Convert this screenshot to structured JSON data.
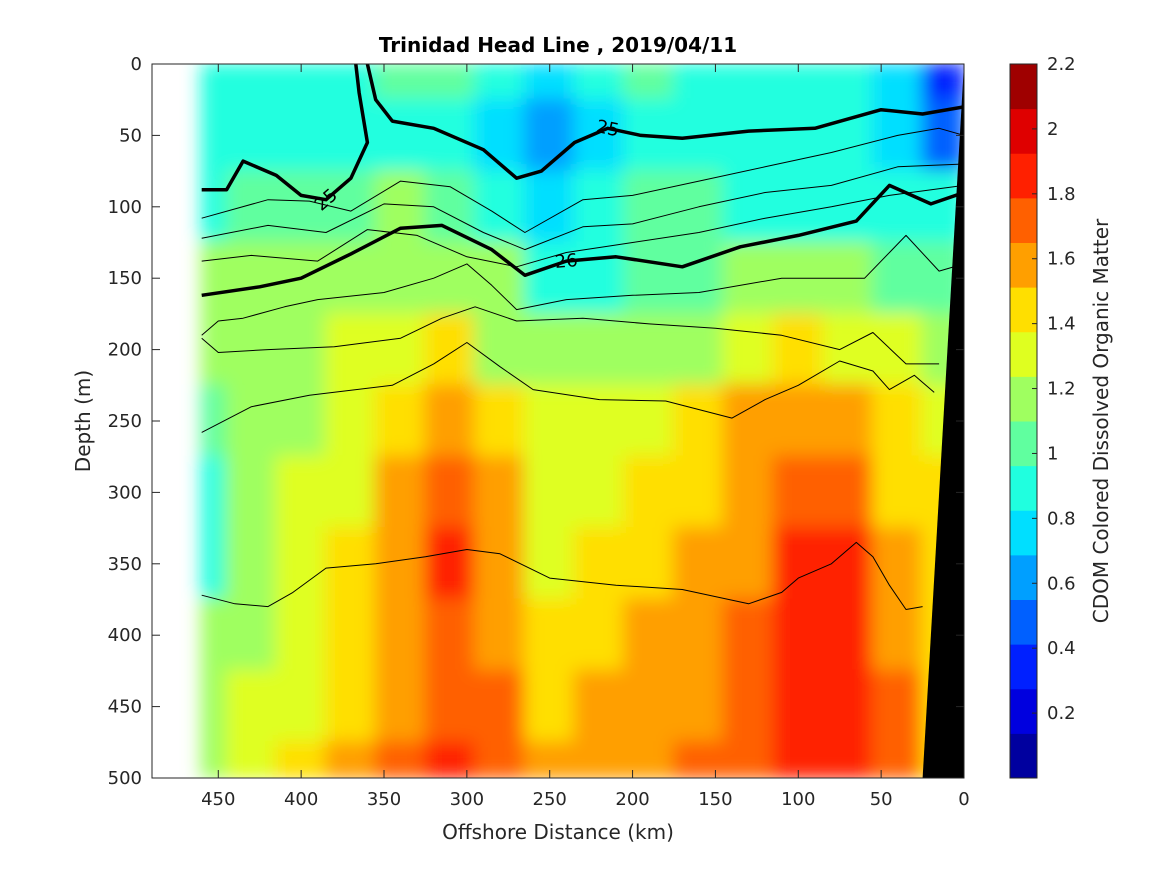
{
  "chart_data": {
    "type": "heatmap",
    "title": "Trinidad Head Line , 2019/04/11",
    "xlabel": "Offshore Distance (km)",
    "ylabel": "Depth (m)",
    "colorbar_label": "CDOM Colored Dissolved Organic Matter",
    "xlim": [
      490,
      0
    ],
    "ylim": [
      0,
      500
    ],
    "clim": [
      0,
      2.2
    ],
    "x_ticks": [
      "450",
      "400",
      "350",
      "300",
      "250",
      "200",
      "150",
      "100",
      "50",
      "0"
    ],
    "x_tick_values": [
      450,
      400,
      350,
      300,
      250,
      200,
      150,
      100,
      50,
      0
    ],
    "y_ticks": [
      "0",
      "50",
      "100",
      "150",
      "200",
      "250",
      "300",
      "350",
      "400",
      "450",
      "500"
    ],
    "y_tick_values": [
      0,
      50,
      100,
      150,
      200,
      250,
      300,
      350,
      400,
      450,
      500
    ],
    "colorbar_ticks": [
      "0.2",
      "0.4",
      "0.6",
      "0.8",
      "1",
      "1.2",
      "1.4",
      "1.6",
      "1.8",
      "2",
      "2.2"
    ],
    "colorbar_tick_values": [
      0.2,
      0.4,
      0.6,
      0.8,
      1.0,
      1.2,
      1.4,
      1.6,
      1.8,
      2.0,
      2.2
    ],
    "data_x_extent": [
      460,
      0
    ],
    "columns_x": [
      460,
      430,
      400,
      370,
      340,
      310,
      280,
      250,
      220,
      190,
      160,
      130,
      100,
      70,
      40,
      10
    ],
    "rows_depth": [
      0,
      50,
      100,
      150,
      200,
      250,
      300,
      350,
      400,
      450,
      500
    ],
    "values": [
      [
        0.85,
        0.9,
        0.95,
        0.85,
        1.0,
        1.0,
        0.95,
        0.8,
        0.9,
        1.0,
        0.95,
        0.85,
        0.85,
        0.9,
        0.8,
        0.3
      ],
      [
        0.85,
        0.95,
        0.95,
        0.85,
        0.9,
        0.9,
        0.8,
        0.55,
        0.7,
        0.95,
        0.95,
        0.9,
        0.9,
        0.85,
        0.75,
        0.5
      ],
      [
        0.95,
        1.0,
        1.0,
        1.05,
        1.1,
        1.05,
        0.85,
        0.7,
        0.9,
        1.0,
        1.0,
        0.95,
        0.95,
        0.9,
        0.85,
        0.9
      ],
      [
        1.1,
        1.1,
        1.15,
        1.2,
        1.2,
        1.2,
        1.1,
        0.9,
        0.95,
        1.0,
        1.05,
        1.1,
        1.1,
        1.1,
        1.0,
        1.0
      ],
      [
        1.1,
        1.15,
        1.2,
        1.25,
        1.3,
        1.4,
        1.2,
        1.15,
        1.15,
        1.2,
        1.2,
        1.3,
        1.4,
        1.35,
        1.3,
        1.2
      ],
      [
        1.0,
        1.1,
        1.2,
        1.3,
        1.45,
        1.65,
        1.5,
        1.3,
        1.25,
        1.3,
        1.4,
        1.55,
        1.65,
        1.6,
        1.4,
        1.3
      ],
      [
        0.95,
        1.1,
        1.25,
        1.35,
        1.55,
        1.75,
        1.55,
        1.3,
        1.3,
        1.4,
        1.5,
        1.6,
        1.75,
        1.7,
        1.5,
        1.4
      ],
      [
        0.9,
        1.15,
        1.3,
        1.4,
        1.6,
        1.8,
        1.6,
        1.35,
        1.4,
        1.45,
        1.55,
        1.65,
        1.8,
        1.8,
        1.6,
        1.4
      ],
      [
        1.1,
        1.2,
        1.3,
        1.45,
        1.6,
        1.75,
        1.65,
        1.45,
        1.5,
        1.55,
        1.6,
        1.7,
        1.85,
        1.85,
        1.65,
        1.45
      ],
      [
        1.15,
        1.25,
        1.35,
        1.5,
        1.65,
        1.75,
        1.7,
        1.5,
        1.55,
        1.6,
        1.65,
        1.7,
        1.85,
        1.85,
        1.7,
        1.45
      ],
      [
        1.2,
        1.3,
        1.4,
        1.55,
        1.7,
        1.8,
        1.7,
        1.55,
        1.55,
        1.65,
        1.7,
        1.75,
        1.85,
        1.85,
        1.75,
        1.5
      ]
    ],
    "contours": [
      {
        "label": "25",
        "thick": true,
        "points": [
          [
            460,
            88
          ],
          [
            445,
            88
          ],
          [
            435,
            68
          ],
          [
            415,
            78
          ],
          [
            400,
            92
          ],
          [
            385,
            95
          ],
          [
            370,
            80
          ],
          [
            360,
            55
          ],
          [
            365,
            20
          ],
          [
            367,
            0
          ]
        ]
      },
      {
        "label": "25",
        "thick": true,
        "points": [
          [
            360,
            0
          ],
          [
            355,
            25
          ],
          [
            345,
            40
          ],
          [
            320,
            45
          ],
          [
            290,
            60
          ],
          [
            270,
            80
          ],
          [
            255,
            75
          ],
          [
            235,
            55
          ],
          [
            215,
            45
          ],
          [
            195,
            50
          ],
          [
            170,
            52
          ],
          [
            130,
            47
          ],
          [
            90,
            45
          ],
          [
            50,
            32
          ],
          [
            25,
            35
          ],
          [
            0,
            30
          ]
        ]
      },
      {
        "label": "26",
        "thick": true,
        "points": [
          [
            460,
            162
          ],
          [
            425,
            156
          ],
          [
            400,
            150
          ],
          [
            370,
            133
          ],
          [
            340,
            115
          ],
          [
            315,
            113
          ],
          [
            285,
            130
          ],
          [
            265,
            148
          ],
          [
            240,
            138
          ],
          [
            210,
            135
          ],
          [
            170,
            142
          ],
          [
            135,
            128
          ],
          [
            100,
            120
          ],
          [
            65,
            110
          ],
          [
            45,
            85
          ],
          [
            20,
            98
          ],
          [
            0,
            90
          ]
        ]
      },
      {
        "label": "",
        "thick": false,
        "points": [
          [
            460,
            108
          ],
          [
            420,
            95
          ],
          [
            395,
            96
          ],
          [
            370,
            103
          ],
          [
            340,
            82
          ],
          [
            310,
            86
          ],
          [
            285,
            103
          ],
          [
            265,
            118
          ],
          [
            230,
            95
          ],
          [
            200,
            92
          ],
          [
            160,
            82
          ],
          [
            120,
            72
          ],
          [
            80,
            62
          ],
          [
            40,
            50
          ],
          [
            15,
            45
          ],
          [
            0,
            50
          ]
        ]
      },
      {
        "label": "",
        "thick": false,
        "points": [
          [
            460,
            122
          ],
          [
            420,
            113
          ],
          [
            385,
            118
          ],
          [
            350,
            98
          ],
          [
            320,
            100
          ],
          [
            290,
            118
          ],
          [
            265,
            130
          ],
          [
            230,
            114
          ],
          [
            200,
            112
          ],
          [
            160,
            100
          ],
          [
            120,
            90
          ],
          [
            80,
            85
          ],
          [
            40,
            72
          ],
          [
            0,
            70
          ]
        ]
      },
      {
        "label": "",
        "thick": false,
        "points": [
          [
            460,
            138
          ],
          [
            430,
            134
          ],
          [
            390,
            138
          ],
          [
            360,
            116
          ],
          [
            330,
            120
          ],
          [
            300,
            135
          ],
          [
            270,
            142
          ],
          [
            240,
            132
          ],
          [
            200,
            125
          ],
          [
            160,
            118
          ],
          [
            120,
            108
          ],
          [
            80,
            100
          ],
          [
            45,
            92
          ],
          [
            0,
            85
          ]
        ]
      },
      {
        "label": "",
        "thick": false,
        "points": [
          [
            460,
            190
          ],
          [
            450,
            180
          ],
          [
            435,
            178
          ],
          [
            410,
            170
          ],
          [
            390,
            165
          ],
          [
            350,
            160
          ],
          [
            320,
            150
          ],
          [
            300,
            140
          ],
          [
            285,
            155
          ],
          [
            270,
            172
          ],
          [
            240,
            165
          ],
          [
            200,
            162
          ],
          [
            160,
            160
          ],
          [
            110,
            150
          ],
          [
            60,
            150
          ],
          [
            35,
            120
          ],
          [
            15,
            145
          ],
          [
            0,
            140
          ]
        ]
      },
      {
        "label": "",
        "thick": false,
        "points": [
          [
            460,
            192
          ],
          [
            450,
            202
          ],
          [
            420,
            200
          ],
          [
            380,
            198
          ],
          [
            340,
            192
          ],
          [
            315,
            178
          ],
          [
            295,
            170
          ],
          [
            270,
            180
          ],
          [
            230,
            178
          ],
          [
            190,
            182
          ],
          [
            150,
            185
          ],
          [
            110,
            190
          ],
          [
            75,
            200
          ],
          [
            55,
            188
          ],
          [
            35,
            210
          ],
          [
            15,
            210
          ]
        ]
      },
      {
        "label": "",
        "thick": false,
        "points": [
          [
            460,
            258
          ],
          [
            430,
            240
          ],
          [
            395,
            232
          ],
          [
            345,
            225
          ],
          [
            320,
            210
          ],
          [
            300,
            195
          ],
          [
            280,
            212
          ],
          [
            260,
            228
          ],
          [
            220,
            235
          ],
          [
            180,
            236
          ],
          [
            140,
            248
          ],
          [
            120,
            235
          ],
          [
            100,
            225
          ],
          [
            75,
            208
          ],
          [
            55,
            215
          ],
          [
            45,
            228
          ],
          [
            30,
            218
          ],
          [
            18,
            230
          ]
        ]
      },
      {
        "label": "",
        "thick": false,
        "points": [
          [
            460,
            372
          ],
          [
            440,
            378
          ],
          [
            420,
            380
          ],
          [
            405,
            370
          ],
          [
            385,
            353
          ],
          [
            355,
            350
          ],
          [
            325,
            345
          ],
          [
            300,
            340
          ],
          [
            280,
            343
          ],
          [
            250,
            360
          ],
          [
            210,
            365
          ],
          [
            170,
            368
          ],
          [
            130,
            378
          ],
          [
            110,
            370
          ],
          [
            100,
            360
          ],
          [
            80,
            350
          ],
          [
            65,
            335
          ],
          [
            55,
            345
          ],
          [
            45,
            365
          ],
          [
            35,
            382
          ],
          [
            25,
            380
          ]
        ]
      }
    ],
    "seafloor_polygon": [
      [
        0,
        0
      ],
      [
        25,
        500
      ],
      [
        0,
        500
      ]
    ]
  }
}
